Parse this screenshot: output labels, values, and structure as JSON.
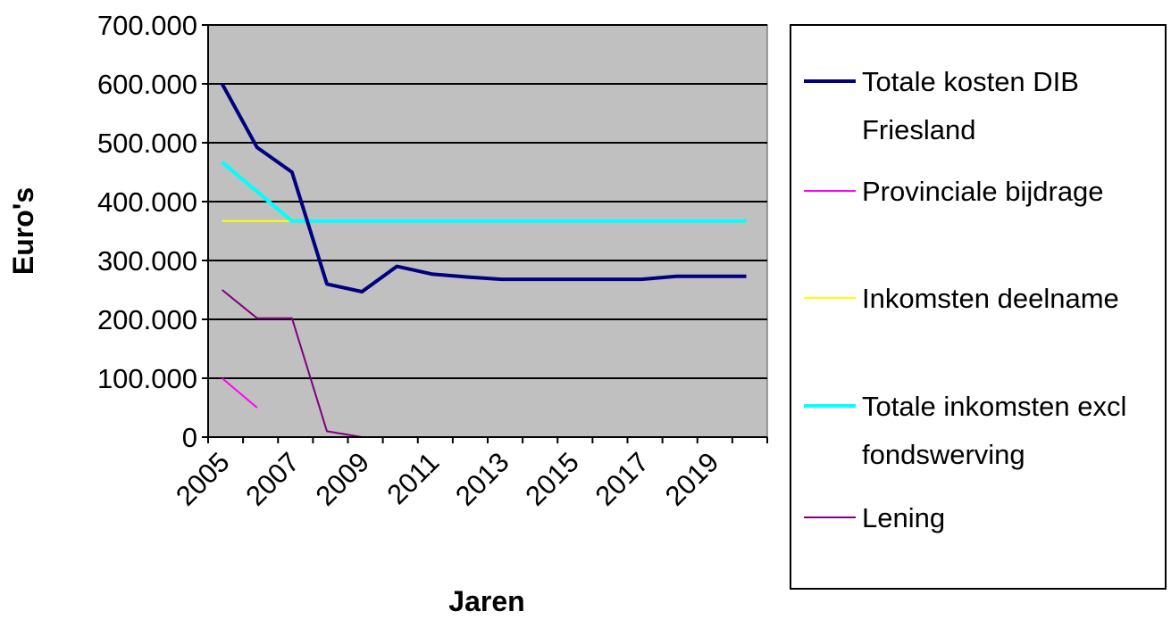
{
  "chart_data": {
    "type": "line",
    "title": "",
    "xlabel": "Jaren",
    "ylabel": "Euro's",
    "ylim": [
      0,
      700000
    ],
    "yticks": [
      0,
      100000,
      200000,
      300000,
      400000,
      500000,
      600000,
      700000
    ],
    "ytick_labels": [
      "0",
      "100.000",
      "200.000",
      "300.000",
      "400.000",
      "500.000",
      "600.000",
      "700.000"
    ],
    "x": [
      2005,
      2006,
      2007,
      2008,
      2009,
      2010,
      2011,
      2012,
      2013,
      2014,
      2015,
      2016,
      2017,
      2018,
      2019,
      2020
    ],
    "xtick_labels": [
      "2005",
      "2007",
      "2009",
      "2011",
      "2013",
      "2015",
      "2017",
      "2019"
    ],
    "xtick_values": [
      2005,
      2007,
      2009,
      2011,
      2013,
      2015,
      2017,
      2019
    ],
    "grid": true,
    "legend_position": "right",
    "plot_background": "#c0c0c0",
    "series": [
      {
        "name_lines": [
          "Totale kosten DIB",
          "Friesland"
        ],
        "color": "#000080",
        "width": 4,
        "x": [
          2005,
          2006,
          2007,
          2008,
          2009,
          2010,
          2011,
          2012,
          2013,
          2014,
          2015,
          2016,
          2017,
          2018,
          2019,
          2020
        ],
        "values": [
          600000,
          492000,
          450000,
          260000,
          247000,
          290000,
          277000,
          272000,
          268000,
          268000,
          268000,
          268000,
          268000,
          273000,
          273000,
          273000
        ]
      },
      {
        "name_lines": [
          "Provinciale bijdrage"
        ],
        "color": "#ff00ff",
        "width": 2,
        "x": [
          2005,
          2006
        ],
        "values": [
          100000,
          50000
        ]
      },
      {
        "name_lines": [
          "Inkomsten deelname"
        ],
        "color": "#ffff00",
        "width": 2,
        "x": [
          2005,
          2006,
          2007,
          2008,
          2009,
          2010,
          2011,
          2012,
          2013,
          2014,
          2015,
          2016,
          2017,
          2018,
          2019,
          2020
        ],
        "values": [
          367000,
          367000,
          367000,
          367000,
          367000,
          367000,
          367000,
          367000,
          367000,
          367000,
          367000,
          367000,
          367000,
          367000,
          367000,
          367000
        ]
      },
      {
        "name_lines": [
          "Totale inkomsten excl",
          "fondswerving"
        ],
        "color": "#00ffff",
        "width": 4,
        "x": [
          2005,
          2006,
          2007,
          2008,
          2009,
          2010,
          2011,
          2012,
          2013,
          2014,
          2015,
          2016,
          2017,
          2018,
          2019,
          2020
        ],
        "values": [
          467000,
          417000,
          367000,
          367000,
          367000,
          367000,
          367000,
          367000,
          367000,
          367000,
          367000,
          367000,
          367000,
          367000,
          367000,
          367000
        ]
      },
      {
        "name_lines": [
          "Lening"
        ],
        "color": "#800080",
        "width": 2,
        "x": [
          2005,
          2006,
          2007,
          2008,
          2009,
          2010,
          2011,
          2012,
          2013,
          2014,
          2015,
          2016,
          2017,
          2018,
          2019,
          2020
        ],
        "values": [
          250000,
          202000,
          202000,
          10000,
          0,
          0,
          0,
          0,
          0,
          0,
          0,
          0,
          0,
          0,
          0,
          0
        ]
      }
    ]
  }
}
